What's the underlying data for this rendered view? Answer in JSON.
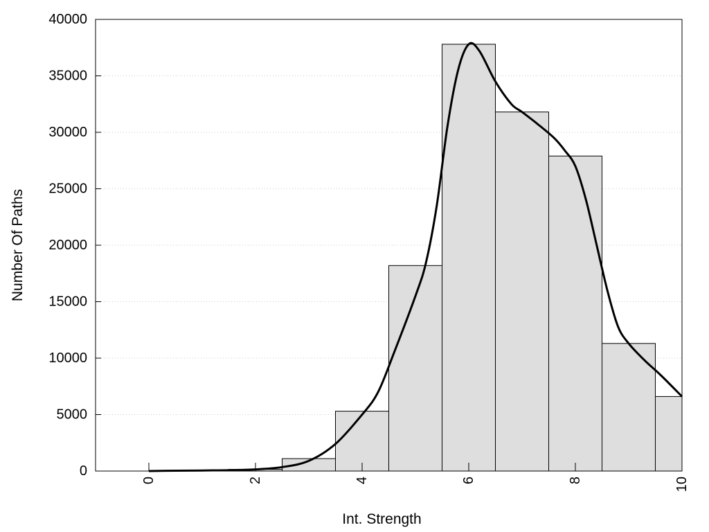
{
  "chart_data": {
    "type": "bar",
    "xlabel": "Int. Strength",
    "ylabel": "Number Of Paths",
    "xlim": [
      -1,
      10
    ],
    "ylim": [
      0,
      40000
    ],
    "xticks": [
      "0",
      "2",
      "4",
      "6",
      "8",
      "10"
    ],
    "yticks": [
      "0",
      "5000",
      "10000",
      "15000",
      "20000",
      "25000",
      "30000",
      "35000",
      "40000"
    ],
    "grid": "horizontal dotted",
    "legend": "none",
    "bars": [
      {
        "x": 0,
        "value": 0
      },
      {
        "x": 1,
        "value": 50
      },
      {
        "x": 2,
        "value": 150
      },
      {
        "x": 3,
        "value": 1100
      },
      {
        "x": 4,
        "value": 5300
      },
      {
        "x": 5,
        "value": 18200
      },
      {
        "x": 6,
        "value": 37800
      },
      {
        "x": 7,
        "value": 31800
      },
      {
        "x": 8,
        "value": 27900
      },
      {
        "x": 9,
        "value": 11300
      },
      {
        "x": 10,
        "value": 6600
      }
    ],
    "curve": [
      [
        0,
        0
      ],
      [
        0.5,
        30
      ],
      [
        1,
        50
      ],
      [
        1.5,
        80
      ],
      [
        2,
        150
      ],
      [
        2.5,
        350
      ],
      [
        3,
        900
      ],
      [
        3.5,
        2400
      ],
      [
        4,
        5000
      ],
      [
        4.3,
        7000
      ],
      [
        4.6,
        10500
      ],
      [
        5,
        15500
      ],
      [
        5.2,
        18500
      ],
      [
        5.4,
        23500
      ],
      [
        5.6,
        30500
      ],
      [
        5.8,
        35500
      ],
      [
        6,
        37800
      ],
      [
        6.2,
        37200
      ],
      [
        6.5,
        34500
      ],
      [
        6.8,
        32500
      ],
      [
        7,
        31800
      ],
      [
        7.3,
        30700
      ],
      [
        7.6,
        29500
      ],
      [
        7.8,
        28400
      ],
      [
        8,
        27000
      ],
      [
        8.2,
        24000
      ],
      [
        8.4,
        20000
      ],
      [
        8.6,
        16000
      ],
      [
        8.8,
        12800
      ],
      [
        9,
        11300
      ],
      [
        9.3,
        9800
      ],
      [
        9.6,
        8500
      ],
      [
        10,
        6600
      ]
    ],
    "colors": {
      "bar_fill": "#dedede",
      "bar_stroke": "#000000",
      "curve": "#000000",
      "grid": "#c8c8c8"
    }
  }
}
